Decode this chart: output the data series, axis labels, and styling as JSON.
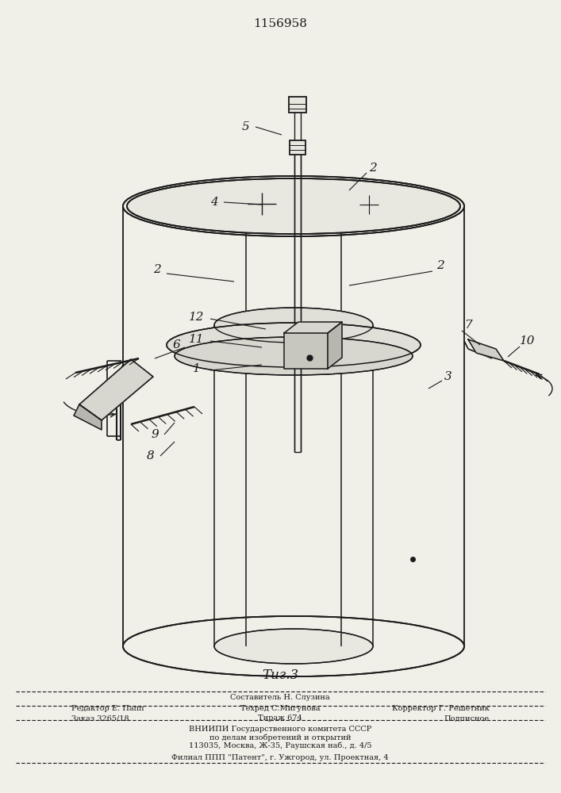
{
  "patent_number": "1156958",
  "figure_caption": "Τиг.3",
  "bg_color": "#f0efe8",
  "line_color": "#1a1a1a",
  "footer_line0": "Составитель Н. Слузина",
  "footer_line1a": "Редактор Е. Папп",
  "footer_line1b": "Техред С.Мигунова",
  "footer_line1c": "Корректор Г. Решетник",
  "footer_line2a": "Заказ 3265/18",
  "footer_line2b": "Тираж 674",
  "footer_line2c": "Подписное",
  "footer_line3": "ВНИИПИ Государственного комитета СССР",
  "footer_line4": "по делам изобретений и открытий",
  "footer_line5": "113035, Москва, Ж-35, Раушская наб., д. 4/5",
  "footer_line6": "Филиал ППП \"Патент\", г. Ужгород, ул. Проектная, 4"
}
